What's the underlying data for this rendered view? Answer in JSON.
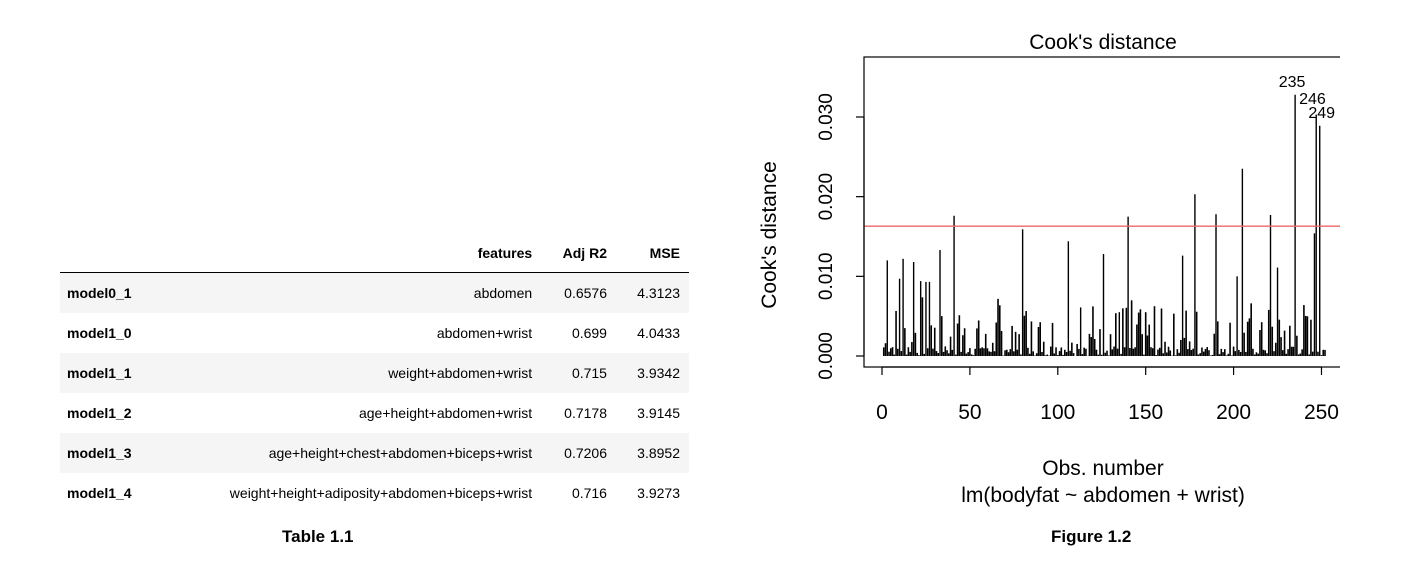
{
  "table": {
    "headers": [
      "",
      "features",
      "Adj R2",
      "MSE"
    ],
    "rows": [
      {
        "name": "model0_1",
        "features": "abdomen",
        "adj_r2": "0.6576",
        "mse": "4.3123"
      },
      {
        "name": "model1_0",
        "features": "abdomen+wrist",
        "adj_r2": "0.699",
        "mse": "4.0433"
      },
      {
        "name": "model1_1",
        "features": "weight+abdomen+wrist",
        "adj_r2": "0.715",
        "mse": "3.9342"
      },
      {
        "name": "model1_2",
        "features": "age+height+abdomen+wrist",
        "adj_r2": "0.7178",
        "mse": "3.9145"
      },
      {
        "name": "model1_3",
        "features": "age+height+chest+abdomen+biceps+wrist",
        "adj_r2": "0.7206",
        "mse": "3.8952"
      },
      {
        "name": "model1_4",
        "features": "weight+height+adiposity+abdomen+biceps+wrist",
        "adj_r2": "0.716",
        "mse": "3.9273"
      }
    ],
    "caption": "Table 1.1"
  },
  "figure": {
    "caption": "Figure 1.2"
  },
  "chart_data": {
    "type": "bar",
    "title": "Cook's distance",
    "xlabel": "Obs. number",
    "sublabel": "lm(bodyfat ~ abdomen + wrist)",
    "ylabel": "Cook's distance",
    "xlim": [
      0,
      252
    ],
    "ylim": [
      0,
      0.035
    ],
    "xticks": [
      0,
      50,
      100,
      150,
      200,
      250
    ],
    "xtick_labels": [
      "0",
      "50",
      "100",
      "150",
      "200",
      "250"
    ],
    "yticks": [
      0,
      0.01,
      0.02,
      0.03
    ],
    "ytick_labels": [
      "0.000",
      "0.010",
      "0.020",
      "0.030"
    ],
    "threshold": 0.0163,
    "threshold_color": "#ee6666",
    "bar_color": "#000000",
    "labeled_points": [
      {
        "x": 235,
        "label": "235"
      },
      {
        "x": 246,
        "label": "246"
      },
      {
        "x": 249,
        "label": "249"
      }
    ],
    "spikes": [
      {
        "x": 3,
        "y": 0.012
      },
      {
        "x": 10,
        "y": 0.0097
      },
      {
        "x": 12,
        "y": 0.0122
      },
      {
        "x": 18,
        "y": 0.0118
      },
      {
        "x": 22,
        "y": 0.0094
      },
      {
        "x": 25,
        "y": 0.0093
      },
      {
        "x": 27,
        "y": 0.0093
      },
      {
        "x": 33,
        "y": 0.0133
      },
      {
        "x": 41,
        "y": 0.0176
      },
      {
        "x": 80,
        "y": 0.0159
      },
      {
        "x": 106,
        "y": 0.0144
      },
      {
        "x": 113,
        "y": 0.0061
      },
      {
        "x": 126,
        "y": 0.0128
      },
      {
        "x": 135,
        "y": 0.0055
      },
      {
        "x": 140,
        "y": 0.0175
      },
      {
        "x": 171,
        "y": 0.0126
      },
      {
        "x": 178,
        "y": 0.0203
      },
      {
        "x": 190,
        "y": 0.0178
      },
      {
        "x": 202,
        "y": 0.01
      },
      {
        "x": 205,
        "y": 0.0235
      },
      {
        "x": 221,
        "y": 0.0177
      },
      {
        "x": 225,
        "y": 0.0111
      },
      {
        "x": 235,
        "y": 0.0328
      },
      {
        "x": 246,
        "y": 0.0154
      },
      {
        "x": 247,
        "y": 0.0303
      },
      {
        "x": 249,
        "y": 0.0289
      }
    ]
  }
}
